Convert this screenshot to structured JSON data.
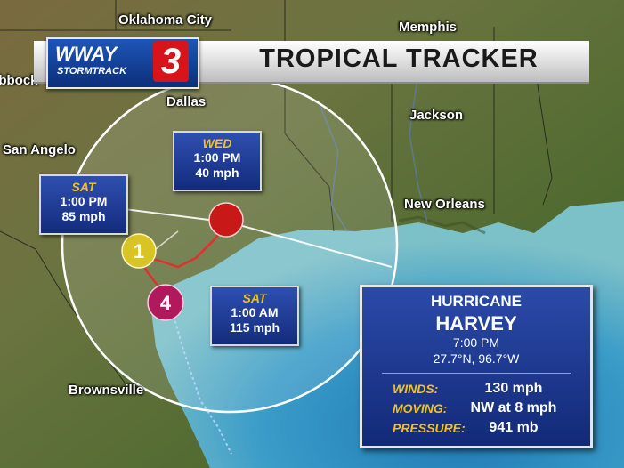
{
  "banner": {
    "title": "TROPICAL TRACKER",
    "logo_station": "WWAY",
    "logo_sub": "STORMTRACK",
    "logo_channel": "3"
  },
  "cities": [
    {
      "name": "Oklahoma City"
    },
    {
      "name": "Memphis"
    },
    {
      "name": "Lubbock"
    },
    {
      "name": "Dallas"
    },
    {
      "name": "Jackson"
    },
    {
      "name": "San Angelo"
    },
    {
      "name": "New Orleans"
    },
    {
      "name": "Brownsville"
    }
  ],
  "forecast_points": [
    {
      "day": "WED",
      "time": "1:00 PM",
      "speed": "40 mph"
    },
    {
      "day": "SAT",
      "time": "1:00 PM",
      "speed": "85 mph"
    },
    {
      "day": "SAT",
      "time": "1:00 AM",
      "speed": "115 mph"
    }
  ],
  "storm_icons": [
    {
      "category": "4",
      "color": "#b01a5c"
    },
    {
      "category": "1",
      "color": "#d8c424"
    },
    {
      "category": "",
      "color": "#c81818"
    }
  ],
  "storm_info": {
    "type": "HURRICANE",
    "name": "HARVEY",
    "time": "7:00 PM",
    "coords": "27.7°N, 96.7°W",
    "winds_label": "WINDS:",
    "winds": "130 mph",
    "moving_label": "MOVING:",
    "moving": "NW at 8 mph",
    "pressure_label": "PRESSURE:",
    "pressure": "941 mb"
  },
  "colors": {
    "land": "#5a6b3a",
    "water": "#2a8cb8",
    "cone": "#ffffff",
    "panel": "#1a3a90",
    "label_accent": "#f2c21a"
  }
}
